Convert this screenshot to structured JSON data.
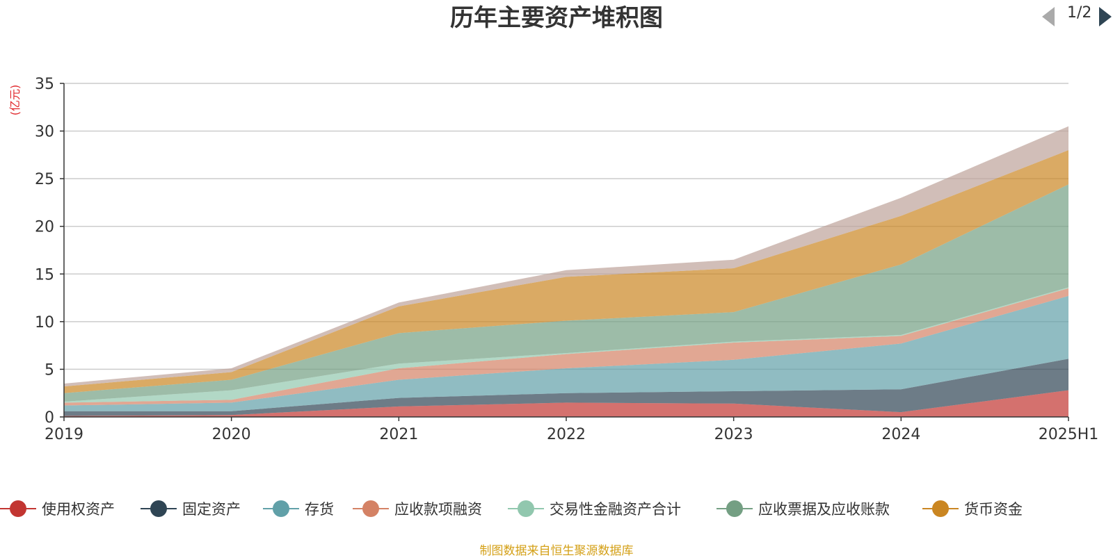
{
  "chart_data": {
    "type": "area",
    "stacked": true,
    "title": "历年主要资产堆积图",
    "ylabel": "(亿元)",
    "ylim": [
      0,
      35
    ],
    "yticks": [
      0,
      5,
      10,
      15,
      20,
      25,
      30,
      35
    ],
    "categories": [
      "2019",
      "2020",
      "2021",
      "2022",
      "2023",
      "2024",
      "2025H1"
    ],
    "grid": true,
    "legend_position": "bottom",
    "series": [
      {
        "name": "使用权资产",
        "color": "#c23531",
        "values": [
          0.1,
          0.2,
          1.1,
          1.5,
          1.4,
          0.5,
          2.8
        ]
      },
      {
        "name": "固定资产",
        "color": "#2f4554",
        "values": [
          0.5,
          0.4,
          0.9,
          1.0,
          1.3,
          2.4,
          3.3
        ]
      },
      {
        "name": "存货",
        "color": "#61a0a8",
        "values": [
          0.6,
          0.9,
          1.9,
          2.6,
          3.3,
          4.8,
          6.6
        ]
      },
      {
        "name": "应收款项融资",
        "color": "#d48265",
        "values": [
          0.3,
          0.3,
          1.2,
          1.5,
          1.8,
          0.8,
          0.8
        ]
      },
      {
        "name": "交易性金融资产合计",
        "color": "#91c7ae",
        "values": [
          0.1,
          1.0,
          0.5,
          0.1,
          0.1,
          0.1,
          0.1
        ]
      },
      {
        "name": "应收票据及应收账款",
        "color": "#749f83",
        "values": [
          0.9,
          1.1,
          3.2,
          3.4,
          3.1,
          7.4,
          10.8
        ]
      },
      {
        "name": "货币资金",
        "color": "#ca8622",
        "values": [
          0.7,
          0.8,
          2.8,
          4.6,
          4.6,
          5.1,
          3.6
        ]
      },
      {
        "name": "",
        "color": "#bda29a",
        "values": [
          0.3,
          0.4,
          0.4,
          0.7,
          0.9,
          1.9,
          2.5
        ]
      }
    ]
  },
  "legend": {
    "page_indicator": "1/2"
  },
  "source_note": "制图数据来自恒生聚源数据库"
}
